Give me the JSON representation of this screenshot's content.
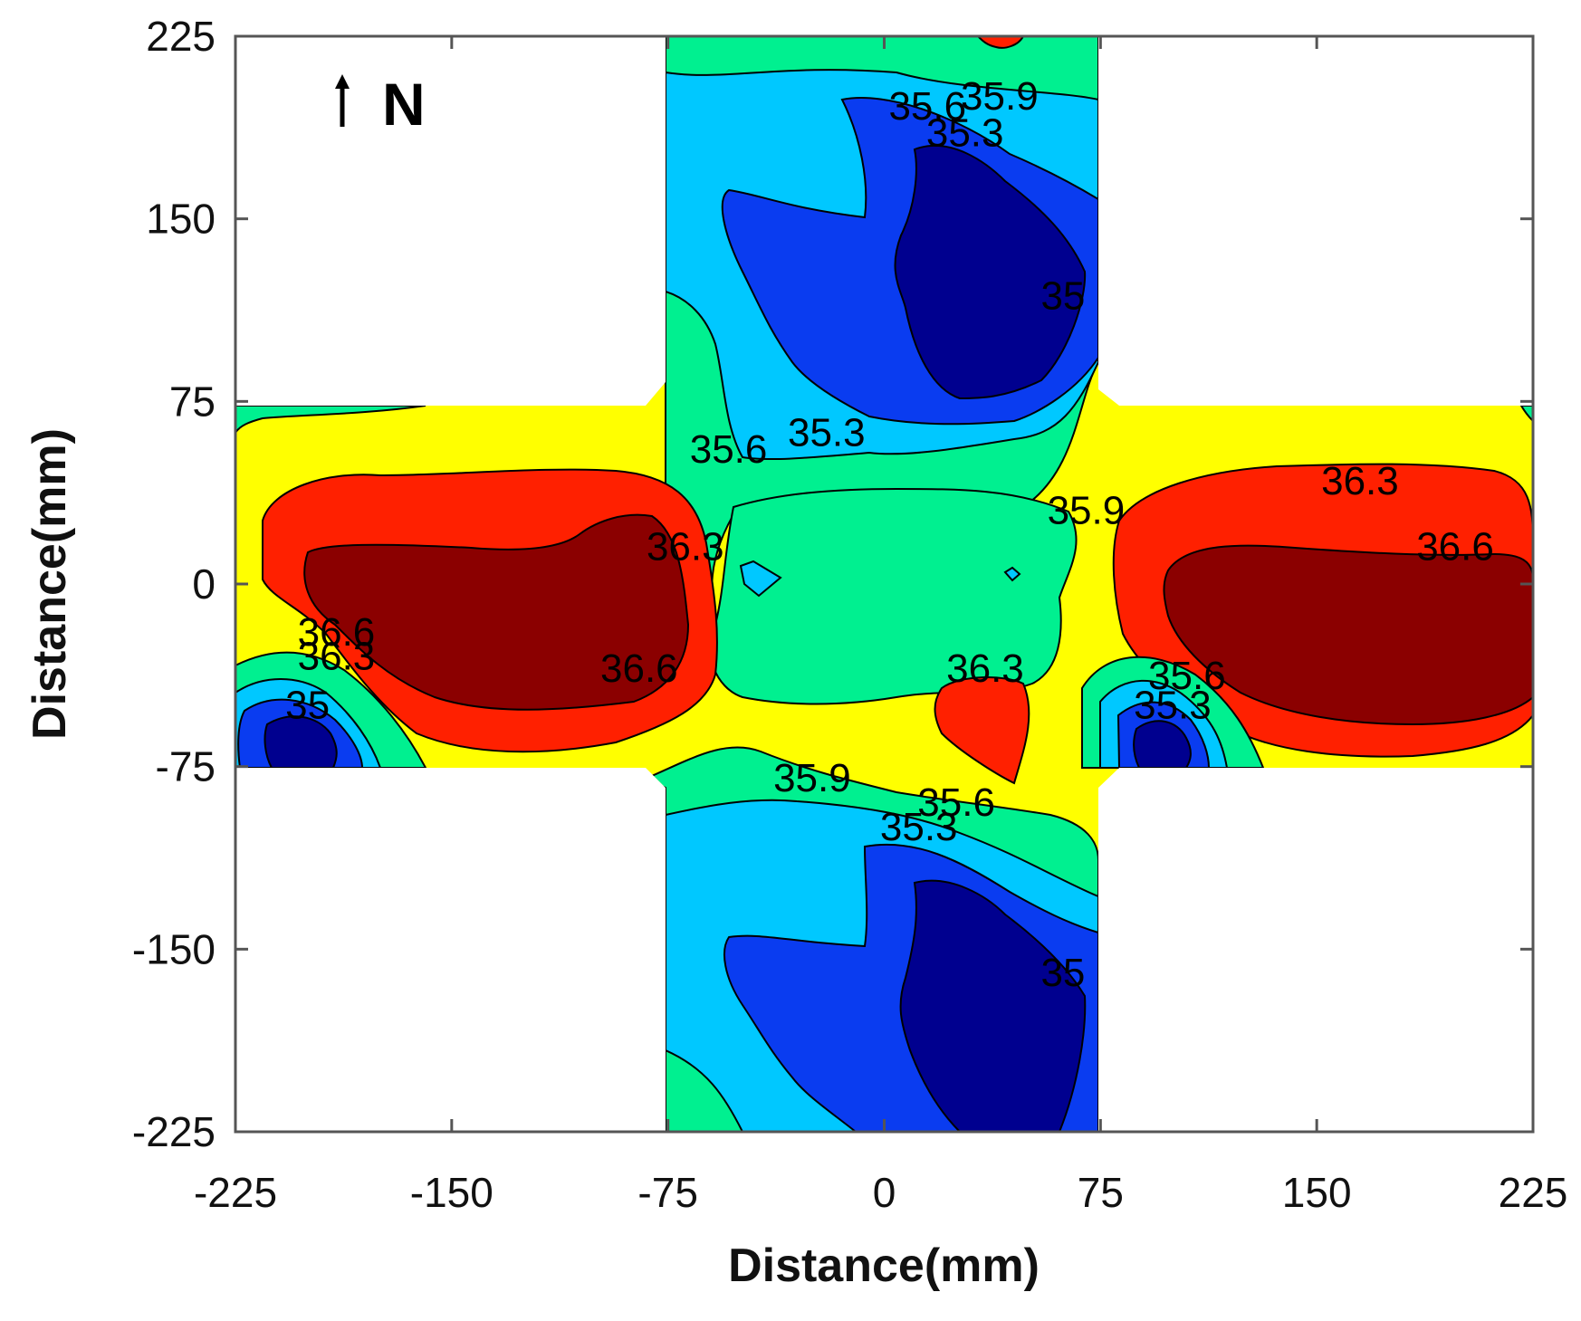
{
  "chart_data": {
    "type": "contour",
    "title": "",
    "xlabel": "Distance(mm)",
    "ylabel": "Distance(mm)",
    "xlim": [
      -225,
      225
    ],
    "ylim": [
      -225,
      225
    ],
    "xticks": [
      -225,
      -150,
      -75,
      0,
      75,
      150,
      225
    ],
    "yticks": [
      -225,
      -150,
      -75,
      0,
      75,
      150,
      225
    ],
    "xtick_labels": [
      "-225",
      "-150",
      "-75",
      "0",
      "75",
      "150",
      "225"
    ],
    "ytick_labels": [
      "-225",
      "-150",
      "-75",
      "0",
      "75",
      "150",
      "225"
    ],
    "north_label": "N",
    "levels": [
      35.0,
      35.3,
      35.6,
      35.9,
      36.3,
      36.6
    ],
    "colors": {
      "below_35": "#00008f",
      "35_35.3": "#0a3cf0",
      "35.3_35.6": "#00c8ff",
      "35.6_35.9": "#00f090",
      "35.9_36.3": "#ffff00",
      "36.3_36.6": "#ff2000",
      "above_36.6": "#8b0000"
    },
    "domain": "cross-shaped region: arms |x| <= 75 or |y| <= 75",
    "contour_labels": [
      {
        "text": "35.9",
        "x": 40,
        "y": 200
      },
      {
        "text": "35.6",
        "x": 15,
        "y": 196
      },
      {
        "text": "35.3",
        "x": 28,
        "y": 185
      },
      {
        "text": "35",
        "x": 62,
        "y": 118
      },
      {
        "text": "35.6",
        "x": -54,
        "y": 55
      },
      {
        "text": "35.3",
        "x": -20,
        "y": 62
      },
      {
        "text": "35.9",
        "x": 70,
        "y": 30
      },
      {
        "text": "36.3",
        "x": 165,
        "y": 42
      },
      {
        "text": "36.6",
        "x": 198,
        "y": 15
      },
      {
        "text": "36.3",
        "x": -69,
        "y": 15
      },
      {
        "text": "36.6",
        "x": -190,
        "y": -20
      },
      {
        "text": "36.3",
        "x": -190,
        "y": -30
      },
      {
        "text": "36.6",
        "x": -85,
        "y": -35
      },
      {
        "text": "35",
        "x": -200,
        "y": -50
      },
      {
        "text": "36.3",
        "x": 35,
        "y": -35
      },
      {
        "text": "35.6",
        "x": 105,
        "y": -38
      },
      {
        "text": "35.3",
        "x": 100,
        "y": -50
      },
      {
        "text": "35.9",
        "x": -25,
        "y": -80
      },
      {
        "text": "35.6",
        "x": 25,
        "y": -90
      },
      {
        "text": "35.3",
        "x": 12,
        "y": -100
      },
      {
        "text": "35",
        "x": 62,
        "y": -160
      }
    ]
  }
}
